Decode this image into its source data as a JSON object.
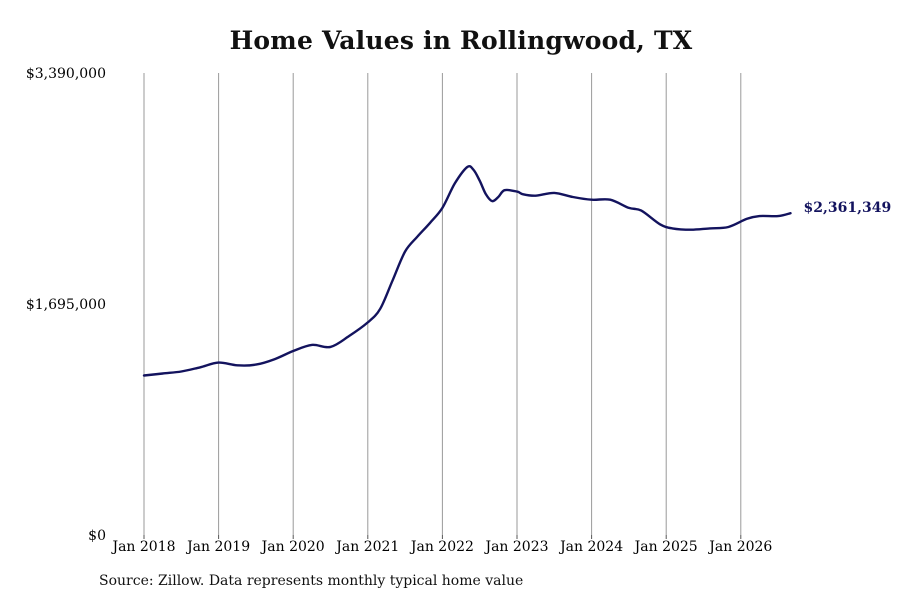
{
  "chart_data": {
    "type": "line",
    "title": "Home Values in Rollingwood, TX",
    "source_note": "Source: Zillow. Data represents monthly typical home value",
    "xlabel": "",
    "ylabel": "",
    "ylim": [
      0,
      3390000
    ],
    "yticks": [
      {
        "value": 0,
        "label": "$0"
      },
      {
        "value": 1695000,
        "label": "$1,695,000"
      },
      {
        "value": 3390000,
        "label": "$3,390,000"
      }
    ],
    "xticks": [
      {
        "value": "2018-01",
        "label": "Jan 2018"
      },
      {
        "value": "2019-01",
        "label": "Jan 2019"
      },
      {
        "value": "2020-01",
        "label": "Jan 2020"
      },
      {
        "value": "2021-01",
        "label": "Jan 2021"
      },
      {
        "value": "2022-01",
        "label": "Jan 2022"
      },
      {
        "value": "2023-01",
        "label": "Jan 2023"
      },
      {
        "value": "2024-01",
        "label": "Jan 2024"
      },
      {
        "value": "2025-01",
        "label": "Jan 2025"
      },
      {
        "value": "2026-01",
        "label": "Jan 2026"
      }
    ],
    "grid": "vertical",
    "line_color": "#13135e",
    "end_label": "$2,361,349",
    "x": [
      "2018-01",
      "2018-04",
      "2018-07",
      "2018-10",
      "2019-01",
      "2019-04",
      "2019-07",
      "2019-10",
      "2020-01",
      "2020-04",
      "2020-07",
      "2020-10",
      "2021-01",
      "2021-03",
      "2021-05",
      "2021-07",
      "2021-09",
      "2021-11",
      "2022-01",
      "2022-03",
      "2022-05",
      "2022-06",
      "2022-07",
      "2022-08",
      "2022-09",
      "2022-10",
      "2022-11",
      "2023-01",
      "2023-02",
      "2023-04",
      "2023-07",
      "2023-10",
      "2024-01",
      "2024-04",
      "2024-07",
      "2024-09",
      "2024-12",
      "2025-02",
      "2025-05",
      "2025-08",
      "2025-11",
      "2026-02",
      "2026-04",
      "2026-07",
      "2026-09"
    ],
    "values": [
      1170000,
      1185000,
      1200000,
      1230000,
      1265000,
      1245000,
      1250000,
      1290000,
      1350000,
      1395000,
      1380000,
      1460000,
      1560000,
      1660000,
      1870000,
      2080000,
      2190000,
      2290000,
      2400000,
      2580000,
      2700000,
      2680000,
      2600000,
      2500000,
      2450000,
      2480000,
      2530000,
      2520000,
      2500000,
      2490000,
      2510000,
      2480000,
      2460000,
      2460000,
      2400000,
      2380000,
      2280000,
      2250000,
      2240000,
      2250000,
      2260000,
      2320000,
      2340000,
      2340000,
      2361349
    ]
  }
}
